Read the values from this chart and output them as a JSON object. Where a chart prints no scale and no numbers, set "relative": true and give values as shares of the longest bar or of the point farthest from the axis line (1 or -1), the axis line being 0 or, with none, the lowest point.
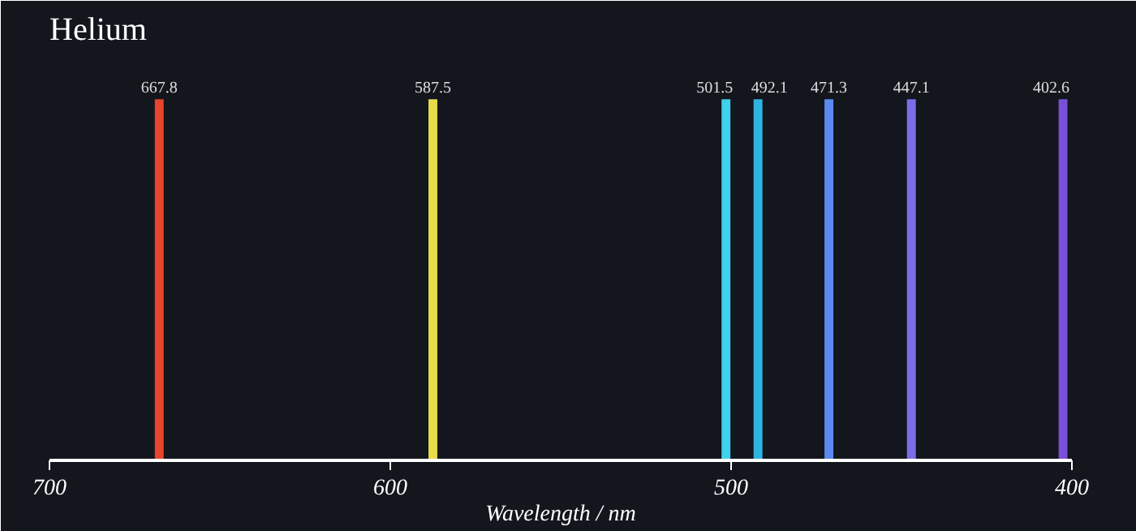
{
  "chart_data": {
    "type": "bar",
    "title": "Helium",
    "xlabel": "Wavelength / nm",
    "xlim": [
      700,
      400
    ],
    "xticks": [
      700,
      600,
      500,
      400
    ],
    "relative": true,
    "x": [
      667.8,
      587.5,
      501.5,
      492.1,
      471.3,
      447.1,
      402.6
    ],
    "values": [
      1,
      1,
      1,
      1,
      1,
      1,
      1
    ],
    "colors": [
      "#e8452e",
      "#e6dc48",
      "#3fd2ea",
      "#2fb4e2",
      "#5a8cf0",
      "#7a6ee8",
      "#7a50d8"
    ],
    "annotations": [
      {
        "text": "667.8",
        "x": 667.8,
        "y": 1
      },
      {
        "text": "587.5",
        "x": 587.5,
        "y": 1
      },
      {
        "text": "501.5",
        "x": 501.5,
        "y": 1
      },
      {
        "text": "492.1",
        "x": 492.1,
        "y": 1
      },
      {
        "text": "471.3",
        "x": 471.3,
        "y": 1
      },
      {
        "text": "447.1",
        "x": 447.1,
        "y": 1
      },
      {
        "text": "402.6",
        "x": 402.6,
        "y": 1
      }
    ]
  }
}
